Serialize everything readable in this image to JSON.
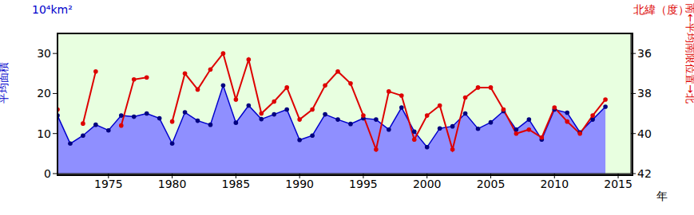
{
  "chart_data": {
    "type": "line",
    "x_label": "年",
    "y_label": "平均面積",
    "y_unit": "10⁴km²",
    "y2_label": "南←平均南限位置→北",
    "y2_unit": "北緯（度）",
    "x": [
      1971,
      1972,
      1973,
      1974,
      1975,
      1976,
      1977,
      1978,
      1979,
      1980,
      1981,
      1982,
      1983,
      1984,
      1985,
      1986,
      1987,
      1988,
      1989,
      1990,
      1991,
      1992,
      1993,
      1994,
      1995,
      1996,
      1997,
      1998,
      1999,
      2000,
      2001,
      2002,
      2003,
      2004,
      2005,
      2006,
      2007,
      2008,
      2009,
      2010,
      2011,
      2012,
      2013,
      2014
    ],
    "xlim": [
      1971,
      2016
    ],
    "xticks": [
      1975,
      1980,
      1985,
      1990,
      1995,
      2000,
      2005,
      2010,
      2015
    ],
    "ylim": [
      0,
      35
    ],
    "yticks": [
      0,
      10,
      20,
      30
    ],
    "y2lim": [
      42,
      35
    ],
    "y2ticks": [
      36,
      38,
      40,
      42
    ],
    "grid": true,
    "series": [
      {
        "type": "area",
        "color": "#0000cc",
        "marker": "circle",
        "values": [
          14.5,
          7.5,
          9.5,
          12.2,
          10.8,
          14.5,
          14.2,
          15,
          13.8,
          7.5,
          15.3,
          13.2,
          12.2,
          22,
          12.7,
          17,
          13.6,
          14.8,
          16,
          8.4,
          9.5,
          14.8,
          13.5,
          12.4,
          13.8,
          13.5,
          11,
          16.5,
          10.5,
          6.6,
          11.3,
          11.8,
          15,
          11.2,
          12.8,
          15.6,
          11,
          13.5,
          8.5,
          16,
          15.2,
          10.3,
          13.5,
          16.7
        ]
      },
      {
        "type": "line",
        "axis": "y2",
        "color": "#dd0000",
        "marker": "circle",
        "values": [
          38.8,
          null,
          39.5,
          36.9,
          null,
          39.6,
          37.3,
          37.2,
          null,
          39.4,
          37.0,
          37.8,
          36.8,
          36.0,
          38.3,
          36.3,
          39.0,
          38.4,
          37.7,
          39.3,
          38.8,
          37.6,
          36.9,
          37.5,
          39.1,
          40.8,
          37.9,
          38.1,
          40.3,
          39.1,
          38.6,
          40.8,
          38.2,
          37.7,
          37.7,
          38.8,
          40.0,
          39.8,
          40.2,
          38.7,
          39.4,
          40.0,
          39.1,
          38.3
        ]
      }
    ]
  }
}
